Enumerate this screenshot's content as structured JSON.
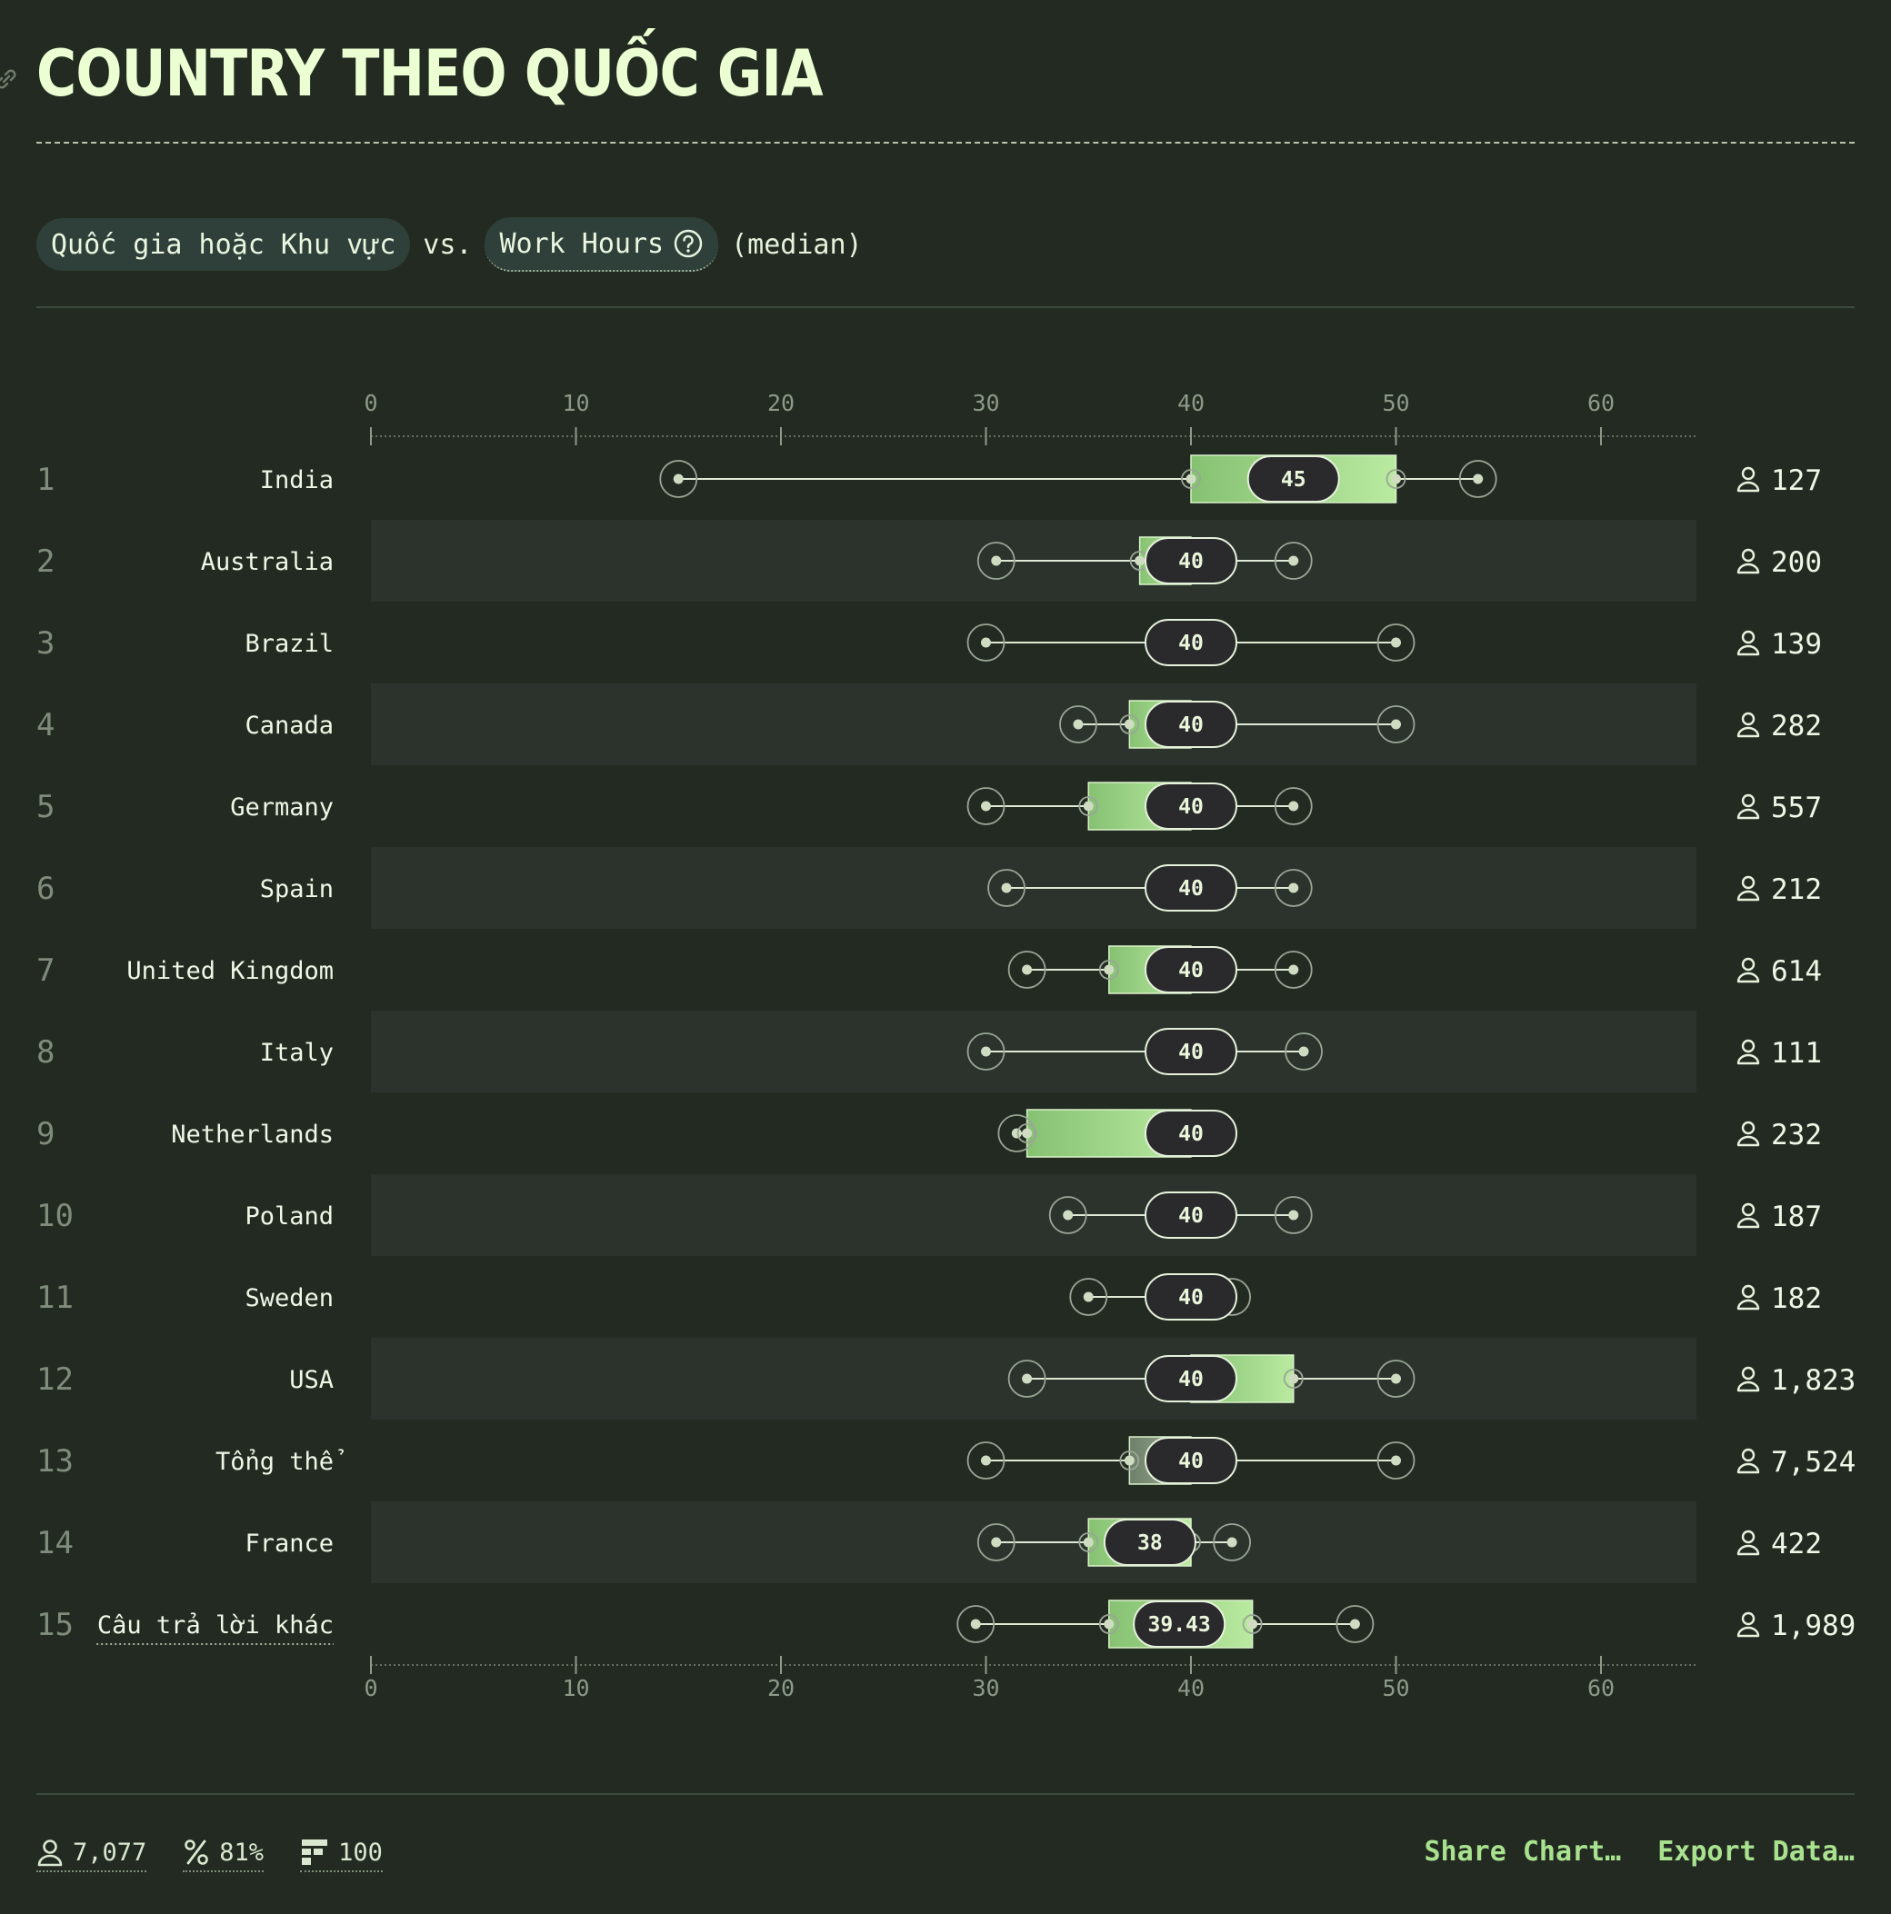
{
  "title": "COUNTRY THEO QUỐC GIA",
  "subtitle": {
    "pill_left": "Quốc gia hoặc Khu vực",
    "vs": "vs.",
    "pill_right": "Work Hours",
    "suffix": "(median)"
  },
  "chart_data": {
    "type": "boxplot",
    "x_ticks": [
      0,
      10,
      20,
      30,
      40,
      50,
      60
    ],
    "x_range": [
      0,
      64
    ],
    "rows": [
      {
        "rank": "1",
        "label": "India",
        "min": 15,
        "q1": 40,
        "median": 45,
        "median_label": "45",
        "q3": 50,
        "max": 54,
        "count": "127"
      },
      {
        "rank": "2",
        "label": "Australia",
        "min": 30.5,
        "q1": 37.5,
        "median": 40,
        "median_label": "40",
        "q3": 40,
        "max": 45,
        "count": "200"
      },
      {
        "rank": "3",
        "label": "Brazil",
        "min": 30,
        "q1": 40,
        "median": 40,
        "median_label": "40",
        "q3": 40,
        "max": 50,
        "count": "139"
      },
      {
        "rank": "4",
        "label": "Canada",
        "min": 34.5,
        "q1": 37,
        "median": 40,
        "median_label": "40",
        "q3": 40,
        "max": 50,
        "count": "282"
      },
      {
        "rank": "5",
        "label": "Germany",
        "min": 30,
        "q1": 35,
        "median": 40,
        "median_label": "40",
        "q3": 40,
        "max": 45,
        "count": "557"
      },
      {
        "rank": "6",
        "label": "Spain",
        "min": 31,
        "q1": 40,
        "median": 40,
        "median_label": "40",
        "q3": 40,
        "max": 45,
        "count": "212"
      },
      {
        "rank": "7",
        "label": "United Kingdom",
        "min": 32,
        "q1": 36,
        "median": 40,
        "median_label": "40",
        "q3": 40,
        "max": 45,
        "count": "614"
      },
      {
        "rank": "8",
        "label": "Italy",
        "min": 30,
        "q1": 40,
        "median": 40,
        "median_label": "40",
        "q3": 40,
        "max": 45.5,
        "count": "111"
      },
      {
        "rank": "9",
        "label": "Netherlands",
        "min": 31.5,
        "q1": 32,
        "median": 40,
        "median_label": "40",
        "q3": 40,
        "max": 40,
        "count": "232"
      },
      {
        "rank": "10",
        "label": "Poland",
        "min": 34,
        "q1": 40,
        "median": 40,
        "median_label": "40",
        "q3": 40,
        "max": 45,
        "count": "187"
      },
      {
        "rank": "11",
        "label": "Sweden",
        "min": 35,
        "q1": 40,
        "median": 40,
        "median_label": "40",
        "q3": 40,
        "max": 42,
        "count": "182"
      },
      {
        "rank": "12",
        "label": "USA",
        "min": 32,
        "q1": 40,
        "median": 40,
        "median_label": "40",
        "q3": 45,
        "max": 50,
        "count": "1,823"
      },
      {
        "rank": "13",
        "label": "Tổng thể",
        "min": 30,
        "q1": 37,
        "median": 40,
        "median_label": "40",
        "q3": 40,
        "max": 50,
        "count": "7,524",
        "overall": true
      },
      {
        "rank": "14",
        "label": "France",
        "min": 30.5,
        "q1": 35,
        "median": 38,
        "median_label": "38",
        "q3": 40,
        "max": 42,
        "count": "422"
      },
      {
        "rank": "15",
        "label": "Câu trả lời khác",
        "min": 29.5,
        "q1": 36,
        "median": 39.43,
        "median_label": "39.43",
        "q3": 43,
        "max": 48,
        "count": "1,989",
        "underlined": true
      }
    ]
  },
  "footer": {
    "respondents": "7,077",
    "percent": "81%",
    "bins": "100",
    "share_label": "Share Chart…",
    "export_label": "Export Data…"
  },
  "colors": {
    "background": "#232a22",
    "band": "#2b332c",
    "box_light": "#b9eaa0",
    "box_dark": "#86c172",
    "median_pill": "#2a2a2c",
    "accent": "#a8e28e"
  },
  "icons": {
    "count": "person-icon",
    "help": "question-circle-icon",
    "title": "link-icon"
  }
}
